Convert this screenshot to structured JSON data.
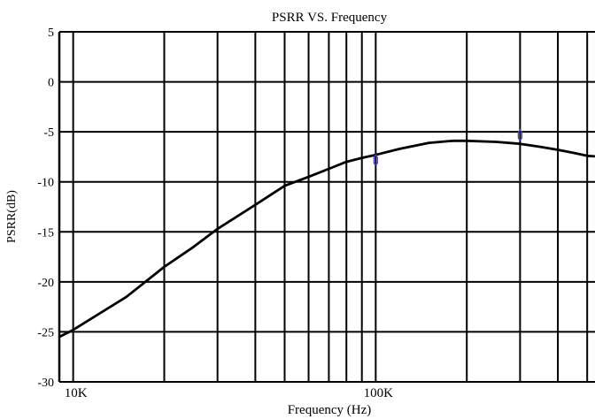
{
  "chart_data": {
    "type": "line",
    "title": "PSRR VS. Frequency",
    "xlabel": "Frequency (Hz)",
    "ylabel": "PSRR(dB)",
    "x_scale": "log",
    "xlim": [
      9000,
      560000
    ],
    "ylim": [
      -30,
      5
    ],
    "y_ticks": [
      5,
      0,
      -5,
      -10,
      -15,
      -20,
      -25,
      -30
    ],
    "x_tick_labels": [
      {
        "value": 10000,
        "label": "10K"
      },
      {
        "value": 100000,
        "label": "100K"
      }
    ],
    "x_major_gridlines": [
      10000,
      20000,
      30000,
      40000,
      50000,
      60000,
      70000,
      80000,
      90000,
      100000,
      200000,
      300000,
      400000,
      500000
    ],
    "grid": true,
    "line_color": "#000000",
    "marker_color": "#4a4ac8",
    "series": [
      {
        "x": [
          9000,
          10000,
          15000,
          20000,
          25000,
          30000,
          40000,
          50000,
          60000,
          70000,
          80000,
          90000,
          100000,
          120000,
          150000,
          180000,
          200000,
          250000,
          300000,
          350000,
          400000,
          450000,
          500000,
          560000
        ],
        "y": [
          -25.5,
          -24.8,
          -21.5,
          -18.5,
          -16.5,
          -14.7,
          -12.3,
          -10.4,
          -9.5,
          -8.7,
          -8.0,
          -7.6,
          -7.3,
          -6.7,
          -6.1,
          -5.9,
          -5.9,
          -6.0,
          -6.2,
          -6.5,
          -6.8,
          -7.1,
          -7.4,
          -7.5
        ]
      }
    ],
    "markers": [
      {
        "x": 100000,
        "y": -8.0
      },
      {
        "x": 300000,
        "y": -5.5
      }
    ]
  }
}
